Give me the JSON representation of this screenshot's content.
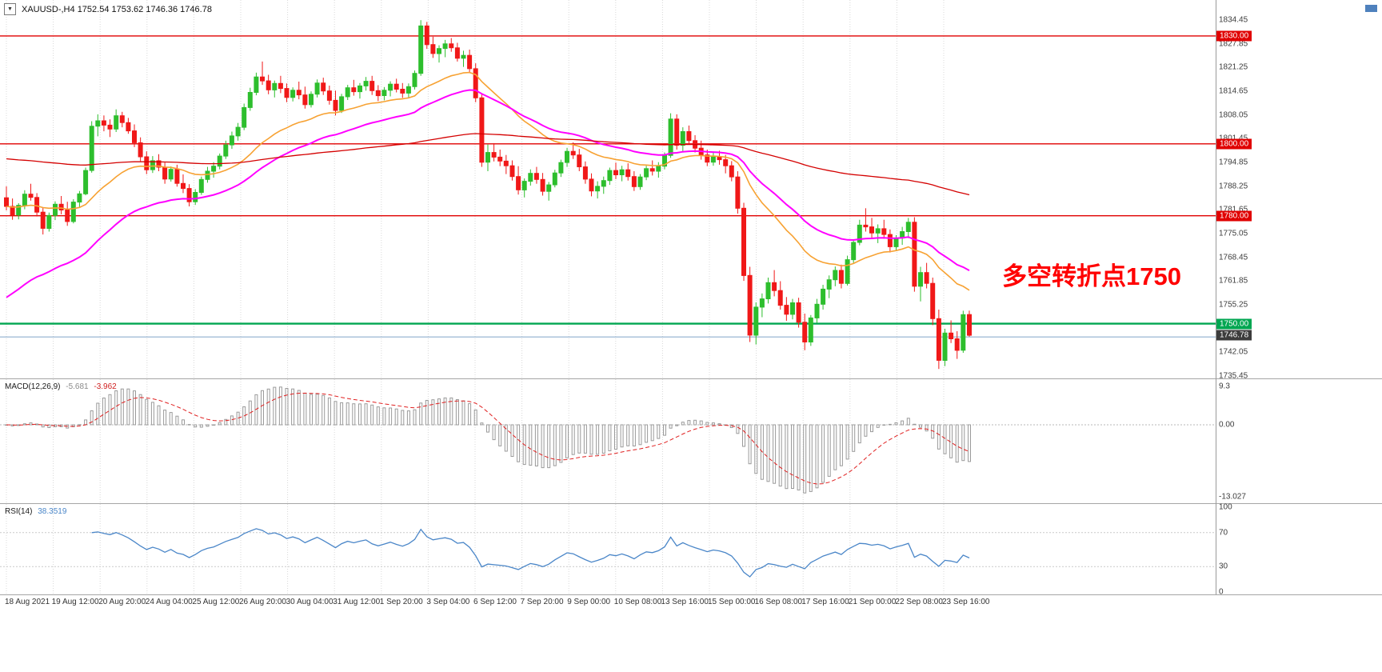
{
  "window": {
    "symbol_timeframe": "XAUUSD-,H4",
    "open": "1752.54",
    "high": "1753.62",
    "low": "1746.36",
    "close": "1746.78",
    "dropdown_glyph": "▼"
  },
  "annotation": {
    "text": "多空转折点1750",
    "color": "#ff0000"
  },
  "price_axis": {
    "ticks": [
      1834.45,
      1827.85,
      1821.25,
      1814.65,
      1808.05,
      1801.45,
      1794.85,
      1788.25,
      1781.65,
      1775.05,
      1768.45,
      1761.85,
      1755.25,
      1742.05,
      1735.45
    ]
  },
  "levels": [
    {
      "label": "1830.00",
      "price": 1830.0,
      "color": "#e00000",
      "width": 1.4
    },
    {
      "label": "1800.00",
      "price": 1800.0,
      "color": "#e00000",
      "width": 1.4
    },
    {
      "label": "1780.00",
      "price": 1780.0,
      "color": "#e00000",
      "width": 1.4
    },
    {
      "label": "1750.00",
      "price": 1750.0,
      "color": "#00a651",
      "width": 2.4
    }
  ],
  "bid_line": {
    "price": 1746.3,
    "color": "#8fafcf"
  },
  "current_price": {
    "label": "1746.78",
    "price": 1746.78,
    "badge_color": "#3c3c3c"
  },
  "indicators": {
    "macd": {
      "label": "MACD(12,26,9)",
      "main_value": "-5.681",
      "signal_value": "-3.962",
      "fast": 12,
      "slow": 26,
      "signal": 9,
      "axis": [
        "9.3",
        "0.00",
        "-13.027"
      ]
    },
    "rsi": {
      "label": "RSI(14)",
      "value": "38.3519",
      "period": 14,
      "levels": [
        70,
        30
      ],
      "axis": [
        "100",
        "70",
        "30",
        "0"
      ]
    }
  },
  "time_axis": {
    "labels": [
      "18 Aug 2021",
      "19 Aug 12:00",
      "20 Aug 20:00",
      "24 Aug 04:00",
      "25 Aug 12:00",
      "26 Aug 20:00",
      "30 Aug 04:00",
      "31 Aug 12:00",
      "1 Sep 20:00",
      "3 Sep 04:00",
      "6 Sep 12:00",
      "7 Sep 20:00",
      "9 Sep 00:00",
      "10 Sep 08:00",
      "13 Sep 16:00",
      "15 Sep 00:00",
      "16 Sep 08:00",
      "17 Sep 16:00",
      "21 Sep 00:00",
      "22 Sep 08:00",
      "23 Sep 16:00"
    ]
  },
  "chart_data": {
    "type": "candlestick",
    "symbol": "XAUUSD-",
    "timeframe": "H4",
    "ylim": [
      1735,
      1840
    ],
    "colors": {
      "up": "#2dbe2d",
      "down": "#f01818"
    },
    "moving_averages": [
      {
        "name": "ma-fast-orange",
        "period": 24,
        "color": "#f7a233",
        "width": 1.6
      },
      {
        "name": "ma-mid-magenta",
        "period": 40,
        "seed": 1756,
        "color": "#ff00ff",
        "width": 2
      },
      {
        "name": "ma-slow-red",
        "period": 180,
        "seed": 1796,
        "color": "#d40000",
        "width": 1.3
      }
    ],
    "candles": [
      [
        1785.0,
        1788.2,
        1781.5,
        1782.6
      ],
      [
        1782.6,
        1784.8,
        1778.9,
        1780.2
      ],
      [
        1780.2,
        1783.5,
        1779.0,
        1782.9
      ],
      [
        1782.9,
        1787.1,
        1781.8,
        1786.0
      ],
      [
        1786.0,
        1788.9,
        1784.2,
        1785.1
      ],
      [
        1785.1,
        1786.3,
        1779.8,
        1781.0
      ],
      [
        1781.0,
        1782.4,
        1774.8,
        1776.5
      ],
      [
        1776.5,
        1780.9,
        1775.6,
        1780.1
      ],
      [
        1780.1,
        1784.0,
        1778.8,
        1783.2
      ],
      [
        1783.2,
        1785.5,
        1780.4,
        1781.6
      ],
      [
        1781.6,
        1783.9,
        1777.2,
        1778.4
      ],
      [
        1778.4,
        1784.6,
        1777.9,
        1783.8
      ],
      [
        1783.8,
        1786.9,
        1782.5,
        1786.1
      ],
      [
        1786.1,
        1793.4,
        1785.7,
        1792.6
      ],
      [
        1792.6,
        1806.3,
        1792.0,
        1804.9
      ],
      [
        1804.9,
        1808.2,
        1802.1,
        1806.4
      ],
      [
        1806.4,
        1807.9,
        1803.5,
        1805.2
      ],
      [
        1805.2,
        1806.8,
        1801.9,
        1804.1
      ],
      [
        1804.1,
        1809.6,
        1803.3,
        1807.8
      ],
      [
        1807.8,
        1808.9,
        1804.6,
        1805.9
      ],
      [
        1805.9,
        1807.2,
        1802.8,
        1803.6
      ],
      [
        1803.6,
        1805.4,
        1799.1,
        1800.3
      ],
      [
        1800.3,
        1801.8,
        1795.2,
        1796.4
      ],
      [
        1796.4,
        1797.9,
        1791.6,
        1792.8
      ],
      [
        1792.8,
        1796.6,
        1791.9,
        1795.3
      ],
      [
        1795.3,
        1797.1,
        1792.4,
        1793.5
      ],
      [
        1793.5,
        1794.8,
        1788.9,
        1790.2
      ],
      [
        1790.2,
        1793.7,
        1789.5,
        1792.9
      ],
      [
        1792.9,
        1794.2,
        1788.1,
        1789.0
      ],
      [
        1789.0,
        1791.5,
        1786.3,
        1787.6
      ],
      [
        1787.6,
        1788.8,
        1782.6,
        1783.9
      ],
      [
        1783.9,
        1787.4,
        1783.0,
        1786.5
      ],
      [
        1786.5,
        1790.9,
        1785.8,
        1790.1
      ],
      [
        1790.1,
        1793.6,
        1789.2,
        1792.4
      ],
      [
        1792.4,
        1794.9,
        1790.6,
        1793.8
      ],
      [
        1793.8,
        1797.3,
        1792.9,
        1796.6
      ],
      [
        1796.6,
        1800.9,
        1795.8,
        1799.7
      ],
      [
        1799.7,
        1803.4,
        1798.6,
        1802.2
      ],
      [
        1802.2,
        1805.8,
        1800.9,
        1804.6
      ],
      [
        1804.6,
        1811.2,
        1803.8,
        1810.1
      ],
      [
        1810.1,
        1815.6,
        1809.2,
        1814.3
      ],
      [
        1814.3,
        1819.8,
        1813.5,
        1818.6
      ],
      [
        1818.6,
        1822.9,
        1816.4,
        1817.5
      ],
      [
        1817.5,
        1819.2,
        1813.8,
        1815.0
      ],
      [
        1815.0,
        1817.6,
        1812.9,
        1816.8
      ],
      [
        1816.8,
        1818.9,
        1814.1,
        1815.4
      ],
      [
        1815.4,
        1816.8,
        1811.6,
        1812.9
      ],
      [
        1812.9,
        1815.7,
        1811.8,
        1814.9
      ],
      [
        1814.9,
        1817.3,
        1812.4,
        1813.6
      ],
      [
        1813.6,
        1815.9,
        1809.8,
        1810.9
      ],
      [
        1810.9,
        1814.6,
        1810.1,
        1813.8
      ],
      [
        1813.8,
        1817.9,
        1812.9,
        1816.9
      ],
      [
        1816.9,
        1818.4,
        1813.6,
        1814.7
      ],
      [
        1814.7,
        1816.2,
        1810.9,
        1812.1
      ],
      [
        1812.1,
        1814.8,
        1807.9,
        1809.3
      ],
      [
        1809.3,
        1813.9,
        1808.6,
        1813.1
      ],
      [
        1813.1,
        1816.4,
        1812.2,
        1815.6
      ],
      [
        1815.6,
        1817.8,
        1813.4,
        1814.5
      ],
      [
        1814.5,
        1816.9,
        1812.6,
        1816.1
      ],
      [
        1816.1,
        1818.6,
        1814.8,
        1817.4
      ],
      [
        1817.4,
        1818.9,
        1813.6,
        1814.8
      ],
      [
        1814.8,
        1816.3,
        1811.9,
        1813.4
      ],
      [
        1813.4,
        1815.8,
        1812.1,
        1814.9
      ],
      [
        1814.9,
        1817.4,
        1813.2,
        1816.6
      ],
      [
        1816.6,
        1818.1,
        1814.3,
        1815.2
      ],
      [
        1815.2,
        1816.9,
        1812.8,
        1814.1
      ],
      [
        1814.1,
        1816.8,
        1812.9,
        1815.9
      ],
      [
        1815.9,
        1820.4,
        1815.1,
        1819.6
      ],
      [
        1819.6,
        1834.4,
        1818.9,
        1832.8
      ],
      [
        1832.8,
        1833.9,
        1826.4,
        1827.6
      ],
      [
        1827.6,
        1829.8,
        1823.9,
        1825.1
      ],
      [
        1825.1,
        1827.4,
        1822.6,
        1826.5
      ],
      [
        1826.5,
        1828.9,
        1824.1,
        1827.8
      ],
      [
        1827.8,
        1829.4,
        1825.6,
        1826.7
      ],
      [
        1826.7,
        1828.1,
        1822.9,
        1823.8
      ],
      [
        1823.8,
        1825.9,
        1821.4,
        1824.6
      ],
      [
        1824.6,
        1826.2,
        1819.8,
        1820.9
      ],
      [
        1820.9,
        1822.4,
        1811.6,
        1812.8
      ],
      [
        1812.8,
        1813.9,
        1793.6,
        1794.9
      ],
      [
        1794.9,
        1799.8,
        1792.4,
        1797.6
      ],
      [
        1797.6,
        1800.2,
        1795.1,
        1796.3
      ],
      [
        1796.3,
        1798.4,
        1793.8,
        1795.2
      ],
      [
        1795.2,
        1796.9,
        1791.6,
        1793.9
      ],
      [
        1793.9,
        1795.4,
        1789.8,
        1790.9
      ],
      [
        1790.9,
        1793.8,
        1785.9,
        1787.2
      ],
      [
        1787.2,
        1790.4,
        1785.1,
        1789.6
      ],
      [
        1789.6,
        1792.9,
        1788.4,
        1791.8
      ],
      [
        1791.8,
        1793.6,
        1788.9,
        1790.1
      ],
      [
        1790.1,
        1791.9,
        1785.6,
        1786.8
      ],
      [
        1786.8,
        1789.4,
        1784.2,
        1788.6
      ],
      [
        1788.6,
        1792.8,
        1787.9,
        1791.9
      ],
      [
        1791.9,
        1795.6,
        1790.8,
        1794.8
      ],
      [
        1794.8,
        1798.9,
        1793.6,
        1797.9
      ],
      [
        1797.9,
        1800.4,
        1795.8,
        1796.9
      ],
      [
        1796.9,
        1798.6,
        1792.4,
        1793.6
      ],
      [
        1793.6,
        1795.1,
        1788.9,
        1790.2
      ],
      [
        1790.2,
        1791.8,
        1785.4,
        1786.9
      ],
      [
        1786.9,
        1789.6,
        1784.8,
        1788.2
      ],
      [
        1788.2,
        1790.9,
        1786.1,
        1789.8
      ],
      [
        1789.8,
        1793.4,
        1788.6,
        1792.6
      ],
      [
        1792.6,
        1794.8,
        1790.2,
        1791.4
      ],
      [
        1791.4,
        1793.9,
        1789.6,
        1792.8
      ],
      [
        1792.8,
        1794.6,
        1789.8,
        1790.9
      ],
      [
        1790.9,
        1792.4,
        1786.9,
        1788.1
      ],
      [
        1788.1,
        1791.6,
        1787.2,
        1790.8
      ],
      [
        1790.8,
        1793.9,
        1789.9,
        1793.1
      ],
      [
        1793.1,
        1795.4,
        1791.2,
        1792.4
      ],
      [
        1792.4,
        1794.9,
        1790.6,
        1793.8
      ],
      [
        1793.8,
        1797.6,
        1792.9,
        1796.8
      ],
      [
        1796.8,
        1808.5,
        1796.1,
        1806.9
      ],
      [
        1806.9,
        1808.2,
        1798.4,
        1799.6
      ],
      [
        1799.6,
        1804.6,
        1797.9,
        1803.4
      ],
      [
        1803.4,
        1805.1,
        1799.8,
        1800.9
      ],
      [
        1800.9,
        1802.4,
        1797.6,
        1798.8
      ],
      [
        1798.8,
        1800.9,
        1795.6,
        1796.9
      ],
      [
        1796.9,
        1798.4,
        1793.8,
        1794.9
      ],
      [
        1794.9,
        1797.6,
        1793.9,
        1796.4
      ],
      [
        1796.4,
        1798.1,
        1794.2,
        1795.6
      ],
      [
        1795.6,
        1796.9,
        1791.8,
        1793.9
      ],
      [
        1793.9,
        1795.2,
        1789.6,
        1790.8
      ],
      [
        1790.8,
        1792.4,
        1780.6,
        1782.1
      ],
      [
        1782.1,
        1783.6,
        1761.9,
        1763.4
      ],
      [
        1763.4,
        1765.8,
        1744.9,
        1746.8
      ],
      [
        1746.8,
        1755.9,
        1744.2,
        1754.6
      ],
      [
        1754.6,
        1758.4,
        1751.8,
        1756.9
      ],
      [
        1756.9,
        1762.8,
        1755.6,
        1761.4
      ],
      [
        1761.4,
        1764.9,
        1757.6,
        1759.2
      ],
      [
        1759.2,
        1761.8,
        1753.9,
        1755.1
      ],
      [
        1755.1,
        1757.4,
        1750.8,
        1752.6
      ],
      [
        1752.6,
        1756.9,
        1751.2,
        1755.8
      ],
      [
        1755.8,
        1757.2,
        1748.9,
        1750.4
      ],
      [
        1750.4,
        1752.8,
        1742.6,
        1744.9
      ],
      [
        1744.9,
        1752.4,
        1743.8,
        1751.6
      ],
      [
        1751.6,
        1756.9,
        1750.2,
        1755.4
      ],
      [
        1755.4,
        1760.8,
        1753.9,
        1759.6
      ],
      [
        1759.6,
        1763.4,
        1757.1,
        1762.2
      ],
      [
        1762.2,
        1765.9,
        1760.4,
        1764.8
      ],
      [
        1764.8,
        1766.4,
        1759.8,
        1761.2
      ],
      [
        1761.2,
        1768.9,
        1760.6,
        1767.8
      ],
      [
        1767.8,
        1773.4,
        1766.9,
        1772.6
      ],
      [
        1772.6,
        1778.9,
        1771.8,
        1777.4
      ],
      [
        1777.4,
        1782.1,
        1775.6,
        1776.9
      ],
      [
        1776.9,
        1779.4,
        1773.8,
        1775.2
      ],
      [
        1775.2,
        1777.6,
        1772.4,
        1776.4
      ],
      [
        1776.4,
        1778.9,
        1773.6,
        1774.8
      ],
      [
        1774.8,
        1776.2,
        1769.8,
        1771.4
      ],
      [
        1771.4,
        1774.6,
        1770.2,
        1773.8
      ],
      [
        1773.8,
        1776.9,
        1771.9,
        1775.6
      ],
      [
        1775.6,
        1779.4,
        1773.8,
        1778.2
      ],
      [
        1778.2,
        1779.6,
        1758.9,
        1760.4
      ],
      [
        1760.4,
        1765.8,
        1756.2,
        1764.2
      ],
      [
        1764.2,
        1766.9,
        1759.8,
        1761.2
      ],
      [
        1761.2,
        1762.8,
        1749.6,
        1751.4
      ],
      [
        1751.4,
        1753.9,
        1737.4,
        1739.8
      ],
      [
        1739.8,
        1748.6,
        1738.2,
        1747.4
      ],
      [
        1747.4,
        1750.9,
        1744.6,
        1745.8
      ],
      [
        1745.8,
        1747.9,
        1740.2,
        1742.6
      ],
      [
        1742.6,
        1753.6,
        1741.9,
        1752.5
      ],
      [
        1752.54,
        1753.62,
        1746.36,
        1746.78
      ]
    ]
  }
}
